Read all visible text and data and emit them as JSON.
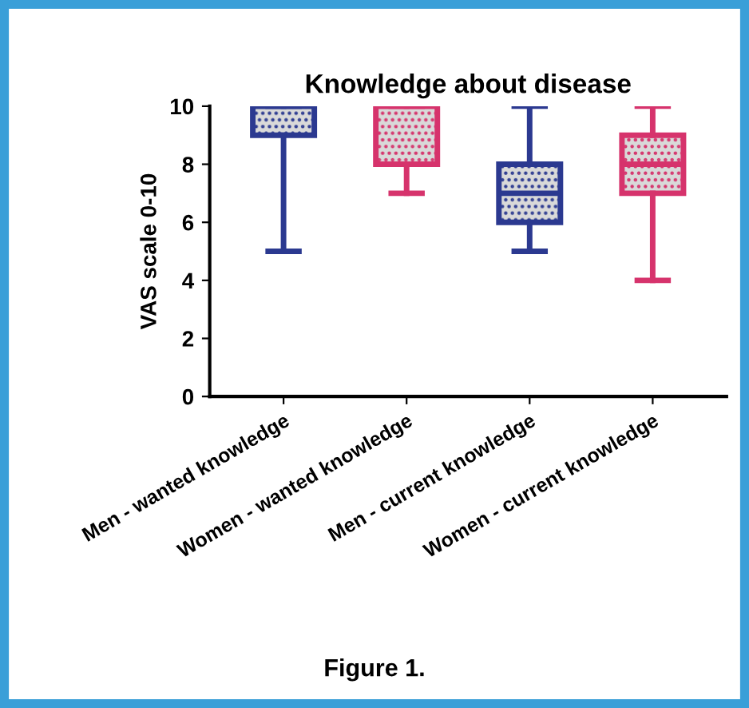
{
  "chart_data": {
    "type": "box",
    "title": "Knowledge about disease",
    "ylabel": "VAS scale 0-10",
    "categories": [
      "Men - wanted knowledge",
      "Women - wanted knowledge",
      "Men - current knowledge",
      "Women - current knowledge"
    ],
    "boxes": [
      {
        "low": 5,
        "q1": 9,
        "median": 10,
        "q3": 10,
        "high": 10
      },
      {
        "low": 7,
        "q1": 8,
        "median": 10,
        "q3": 10,
        "high": 10
      },
      {
        "low": 5,
        "q1": 6,
        "median": 7,
        "q3": 8,
        "high": 10
      },
      {
        "low": 4,
        "q1": 7,
        "median": 8,
        "q3": 9,
        "high": 10
      }
    ],
    "colors": [
      "#2b3990",
      "#d6336c",
      "#2b3990",
      "#d6336c"
    ],
    "ylim": [
      0,
      10
    ],
    "yticks": [
      0,
      2,
      4,
      6,
      8,
      10
    ],
    "grid": false,
    "annotations": [
      "Figure 1."
    ]
  }
}
